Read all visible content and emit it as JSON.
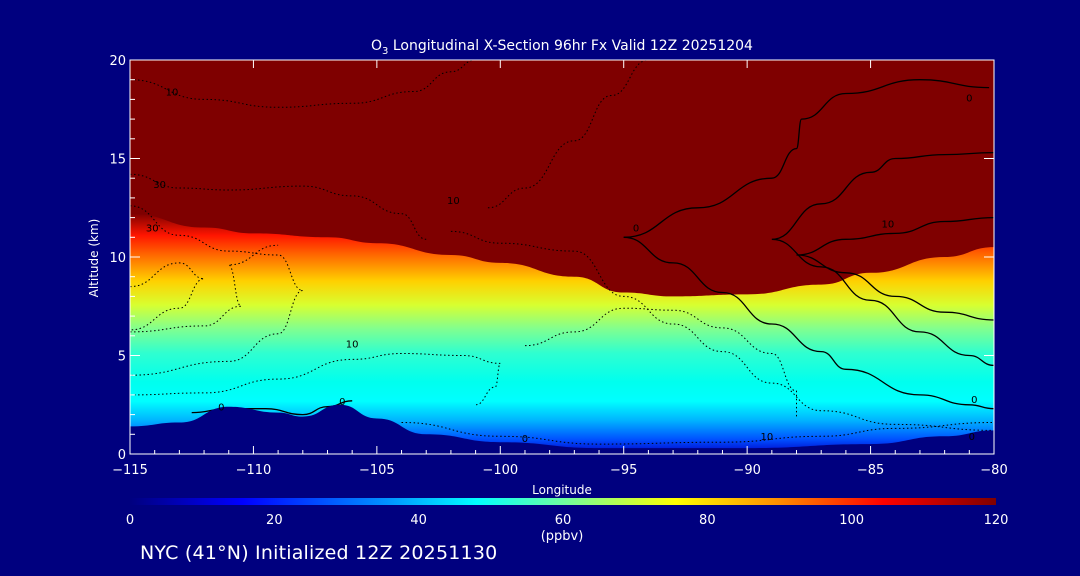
{
  "chart_data": {
    "type": "heatmap",
    "title_prefix": "O",
    "title_sub": "3",
    "title_rest": " Longitudinal X-Section 96hr  Fx Valid 12Z 20251204",
    "xlabel": "Longitude",
    "ylabel": "Altitude (km)",
    "xlim": [
      -115,
      -80
    ],
    "ylim": [
      0,
      20
    ],
    "x_ticks": [
      -115,
      -110,
      -105,
      -100,
      -95,
      -90,
      -85,
      -80
    ],
    "x_tick_labels": [
      "−115",
      "−110",
      "−105",
      "−100",
      "−95",
      "−90",
      "−85",
      "−80"
    ],
    "y_ticks": [
      0,
      5,
      10,
      15,
      20
    ],
    "y_tick_labels": [
      "0",
      "5",
      "10",
      "15",
      "20"
    ],
    "colorbar": {
      "min": 0,
      "max": 120,
      "units": "(ppbv)",
      "ticks": [
        0,
        20,
        40,
        60,
        80,
        100,
        120
      ],
      "tick_labels": [
        "0",
        "20",
        "40",
        "60",
        "80",
        "100",
        "120"
      ]
    },
    "tropopause_top_km": [
      [
        -115,
        12.2
      ],
      [
        -112,
        11.5
      ],
      [
        -110,
        11.2
      ],
      [
        -107,
        11.0
      ],
      [
        -105,
        10.7
      ],
      [
        -102,
        10.1
      ],
      [
        -100,
        9.7
      ],
      [
        -97,
        9.0
      ],
      [
        -95,
        8.2
      ],
      [
        -93,
        8.0
      ],
      [
        -90,
        8.1
      ],
      [
        -87,
        8.6
      ],
      [
        -85,
        9.2
      ],
      [
        -82,
        10.0
      ],
      [
        -80,
        10.5
      ]
    ],
    "terrain_km": [
      [
        -115,
        1.4
      ],
      [
        -113,
        1.6
      ],
      [
        -111,
        2.4
      ],
      [
        -109,
        2.1
      ],
      [
        -108,
        1.9
      ],
      [
        -106.5,
        2.5
      ],
      [
        -105,
        1.8
      ],
      [
        -103,
        1.0
      ],
      [
        -100,
        0.6
      ],
      [
        -96,
        0.3
      ],
      [
        -90,
        0.3
      ],
      [
        -85,
        0.5
      ],
      [
        -82,
        0.9
      ],
      [
        -80,
        1.2
      ]
    ],
    "contour_labels": [
      {
        "text": "10",
        "x": -113.3,
        "y": 18.2
      },
      {
        "text": "30",
        "x": -113.8,
        "y": 13.5
      },
      {
        "text": "30",
        "x": -114.1,
        "y": 11.3
      },
      {
        "text": "10",
        "x": -101.9,
        "y": 12.7
      },
      {
        "text": "10",
        "x": -106.0,
        "y": 5.4
      },
      {
        "text": "0",
        "x": -111.3,
        "y": 2.2
      },
      {
        "text": "0",
        "x": -106.4,
        "y": 2.5
      },
      {
        "text": "0",
        "x": -99.0,
        "y": 0.6
      },
      {
        "text": "0",
        "x": -94.5,
        "y": 11.3
      },
      {
        "text": "10",
        "x": -84.3,
        "y": 11.5
      },
      {
        "text": "10",
        "x": -89.2,
        "y": 0.7
      },
      {
        "text": "0",
        "x": -81.0,
        "y": 17.9
      },
      {
        "text": "0",
        "x": -80.8,
        "y": 2.6
      },
      {
        "text": "0",
        "x": -80.9,
        "y": 0.7
      }
    ]
  },
  "footer": "NYC (41°N) Initialized 12Z 20251130"
}
